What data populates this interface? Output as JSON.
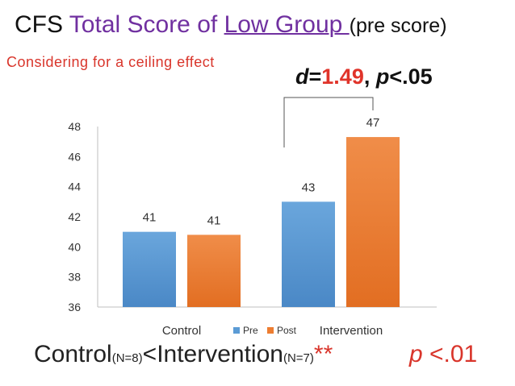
{
  "title": {
    "part1": "CFS ",
    "part2": "Total Score of ",
    "part3": "Low Group ",
    "part4": "(pre score)"
  },
  "subtitle": "Considering for a ceiling effect",
  "stat": {
    "d_label": "d",
    "eq": "=",
    "d_value": "1.49",
    "sep": ", ",
    "p_label": "p",
    "p_rest": "<.05"
  },
  "bottom": {
    "control": "Control",
    "control_n": "(N=8)",
    "lt": "<",
    "intervention": "Intervention",
    "intervention_n": "(N=7)",
    "stars": "**"
  },
  "pvalue": {
    "p": "p",
    "rest": " <.01"
  },
  "colors": {
    "pre": "#5b9bd5",
    "post": "#ed7d31",
    "accent_purple": "#7030a0",
    "accent_red": "#d9352b"
  },
  "chart_data": {
    "type": "bar",
    "categories": [
      "Control",
      "Intervention"
    ],
    "series": [
      {
        "name": "Pre",
        "values": [
          41,
          43
        ],
        "labels": [
          "41",
          "43"
        ]
      },
      {
        "name": "Post",
        "values": [
          40.8,
          47.3
        ],
        "labels": [
          "41",
          "47"
        ]
      }
    ],
    "ylim": [
      36,
      48
    ],
    "yticks": [
      36,
      38,
      40,
      42,
      44,
      46,
      48
    ],
    "legend": [
      "Pre",
      "Post"
    ],
    "legend_position": "bottom-center",
    "annotation": "d=1.49, p<.05",
    "comparison_bracket": "Intervention Pre vs Post"
  }
}
